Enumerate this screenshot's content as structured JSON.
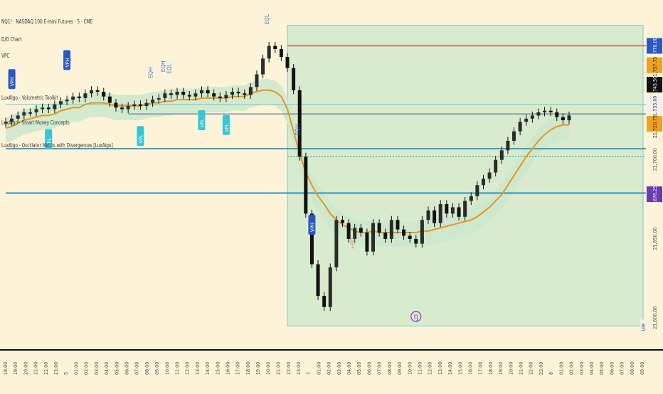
{
  "header": {
    "title": "NQ1! · NASDAQ 100 E-mini Futures · 5 · CME",
    "indicators": [
      "D/D Chart",
      "VPC",
      "LuxAlgo - Volumetric Toolkit",
      "LuxAlgo - Smart Money Concepts",
      "LuxAlgo - Oscillator Matrix with Divergences [LuxAlgo]"
    ]
  },
  "price_axis": {
    "labels": [
      {
        "text": "21,770.00",
        "price": 21770,
        "bg": "#2b59c3",
        "fg": "#ffffff"
      },
      {
        "text": "21,757.75",
        "price": 21757.75,
        "bg": "#f0a020",
        "fg": "#222222"
      },
      {
        "text": "21,745.50",
        "price": 21745.5,
        "bg": "#111111",
        "fg": "#ffffff"
      },
      {
        "text": "21,733.00",
        "price": 21733,
        "bg": "#f0f0f0",
        "fg": "#333333"
      },
      {
        "text": "21,720.75",
        "price": 21720.75,
        "bg": "#f0a020",
        "fg": "#222222"
      },
      {
        "text": "21,700.00",
        "price": 21700,
        "bg": "",
        "fg": "#444444"
      },
      {
        "text": "21,676.25",
        "price": 21676.25,
        "bg": "#6a3bb5",
        "fg": "#ffffff"
      },
      {
        "text": "21,650.00",
        "price": 21650,
        "bg": "",
        "fg": "#444444"
      },
      {
        "text": "21,600.00",
        "price": 21600,
        "bg": "",
        "fg": "#444444"
      }
    ],
    "low_label": "Low"
  },
  "time_axis": {
    "labels": [
      "18:00",
      "19:00",
      "20:00",
      "21:00",
      "22:00",
      "23:00",
      "5",
      "01:00",
      "02:00",
      "03:00",
      "04:00",
      "05:00",
      "06:00",
      "07:00",
      "08:00",
      "09:00",
      "10:00",
      "11:00",
      "12:00",
      "13:00",
      "14:00",
      "15:00",
      "16:00",
      "17:00",
      "18:00",
      "19:00",
      "20:00",
      "21:00",
      "22:00",
      "23:00",
      "7",
      "01:00",
      "02:00",
      "03:00",
      "04:00",
      "05:00",
      "06:00",
      "07:00",
      "08:00",
      "09:00",
      "10:00",
      "11:00",
      "12:00",
      "13:00",
      "14:00",
      "15:00",
      "16:00",
      "17:00",
      "18:00",
      "19:00",
      "20:00",
      "21:00",
      "22:00",
      "23:00",
      "8",
      "01:00",
      "02:00",
      "03:00",
      "04:00",
      "05:00",
      "06:00",
      "07:00",
      "08:00",
      "09:00"
    ]
  },
  "colors": {
    "background": "#fdf3d9",
    "candle": "#111111",
    "vwap": "#e9961e",
    "zone_fill": "#cde8cd",
    "box_fill": "#d8ebcf",
    "box_stroke": "#7fc9d0",
    "red_line": "#c0392b",
    "blue_line": "#1f8fb3",
    "steel_line": "#4a6a8a",
    "vp_badge": "#2b59c3",
    "cyan_badge": "#35c6d6",
    "lightning": "#7b3fc2"
  },
  "chart_data": {
    "type": "candlestick",
    "symbol": "NQ1!",
    "interval": "5",
    "ylim": [
      21590,
      21790
    ],
    "close": [
      21722,
      21724,
      21726,
      21728,
      21728,
      21730,
      21731,
      21730,
      21733,
      21735,
      21736,
      21738,
      21737,
      21740,
      21742,
      21741,
      21738,
      21734,
      21731,
      21730,
      21732,
      21733,
      21732,
      21734,
      21736,
      21737,
      21740,
      21739,
      21741,
      21739,
      21738,
      21740,
      21742,
      21740,
      21738,
      21737,
      21739,
      21741,
      21740,
      21739,
      21744,
      21752,
      21762,
      21770,
      21768,
      21763,
      21756,
      21742,
      21700,
      21664,
      21632,
      21612,
      21605,
      21630,
      21660,
      21658,
      21648,
      21655,
      21652,
      21640,
      21658,
      21652,
      21648,
      21660,
      21654,
      21650,
      21648,
      21645,
      21660,
      21666,
      21658,
      21670,
      21664,
      21668,
      21662,
      21672,
      21675,
      21682,
      21686,
      21690,
      21698,
      21704,
      21710,
      21716,
      21722,
      21724,
      21726,
      21728,
      21729,
      21728,
      21725,
      21723,
      21726
    ],
    "vwap": [
      21718,
      21719,
      21721,
      21723,
      21724,
      21725,
      21726,
      21726,
      21727,
      21729,
      21730,
      21731,
      21731,
      21733,
      21734,
      21734,
      21734,
      21733,
      21732,
      21732,
      21732,
      21732,
      21732,
      21733,
      21734,
      21734,
      21735,
      21735,
      21736,
      21736,
      21736,
      21736,
      21737,
      21737,
      21737,
      21737,
      21737,
      21738,
      21738,
      21738,
      21740,
      21741,
      21742,
      21742,
      21741,
      21738,
      21730,
      21716,
      21702,
      21690,
      21682,
      21675,
      21670,
      21664,
      21660,
      21657,
      21655,
      21653,
      21652,
      21652,
      21653,
      21652,
      21652,
      21652,
      21652,
      21652,
      21652,
      21652,
      21653,
      21653,
      21654,
      21655,
      21656,
      21657,
      21658,
      21659,
      21660,
      21662,
      21665,
      21668,
      21672,
      21676,
      21682,
      21688,
      21694,
      21700,
      21705,
      21710,
      21714,
      21717,
      21719,
      21720,
      21720
    ],
    "levels": [
      {
        "price": 21770,
        "type": "red-line"
      },
      {
        "price": 21733,
        "type": "cyan-line"
      },
      {
        "price": 21727,
        "type": "steel-line"
      },
      {
        "price": 21705,
        "type": "blue-line"
      },
      {
        "price": 21700,
        "type": "dotted-line"
      },
      {
        "price": 21677,
        "type": "blue-line"
      }
    ],
    "box": {
      "high": 21783,
      "low": 21593
    },
    "markers": [
      {
        "label": "VPH",
        "style": "vp",
        "at": 1
      },
      {
        "label": "VPH",
        "style": "vp",
        "at": 10
      },
      {
        "label": "VPH",
        "style": "vp",
        "at": 50
      },
      {
        "label": "VPL",
        "style": "cyan",
        "at": 7
      },
      {
        "label": "VPL",
        "style": "cyan",
        "at": 22
      },
      {
        "label": "VPL",
        "style": "cyan",
        "at": 32
      },
      {
        "label": "VPL",
        "style": "cyan",
        "at": 36
      },
      {
        "label": "EQH",
        "style": "text",
        "at": 24
      },
      {
        "label": "EQH",
        "style": "text",
        "at": 26
      },
      {
        "label": "EQL",
        "style": "text",
        "at": 27
      },
      {
        "label": "EQH",
        "style": "text",
        "at": 48
      },
      {
        "label": "EQL",
        "style": "text",
        "at": 43
      },
      {
        "label": "+PD",
        "style": "text",
        "at": 57
      },
      {
        "label": "Ŋ",
        "style": "lightning",
        "at": 67
      }
    ]
  }
}
